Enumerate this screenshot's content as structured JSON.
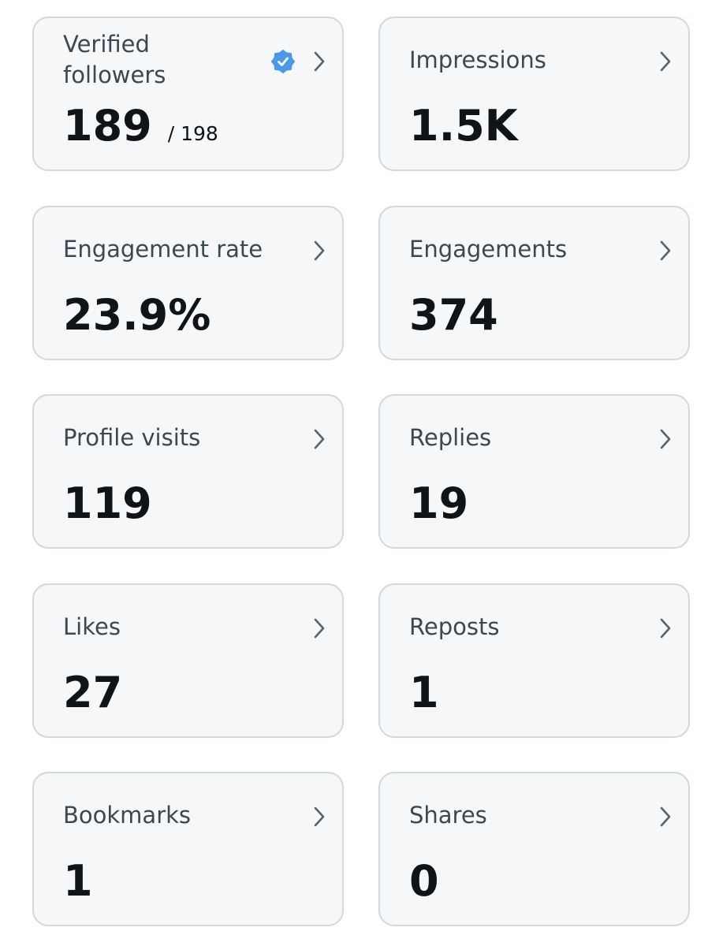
{
  "cards": [
    {
      "label": "Verified followers",
      "value": "189",
      "total": "/ 198",
      "verified": true
    },
    {
      "label": "Impressions",
      "value": "1.5K"
    },
    {
      "label": "Engagement rate",
      "value": "23.9%"
    },
    {
      "label": "Engagements",
      "value": "374"
    },
    {
      "label": "Profile visits",
      "value": "119"
    },
    {
      "label": "Replies",
      "value": "19"
    },
    {
      "label": "Likes",
      "value": "27"
    },
    {
      "label": "Reposts",
      "value": "1"
    },
    {
      "label": "Bookmarks",
      "value": "1"
    },
    {
      "label": "Shares",
      "value": "0"
    }
  ]
}
